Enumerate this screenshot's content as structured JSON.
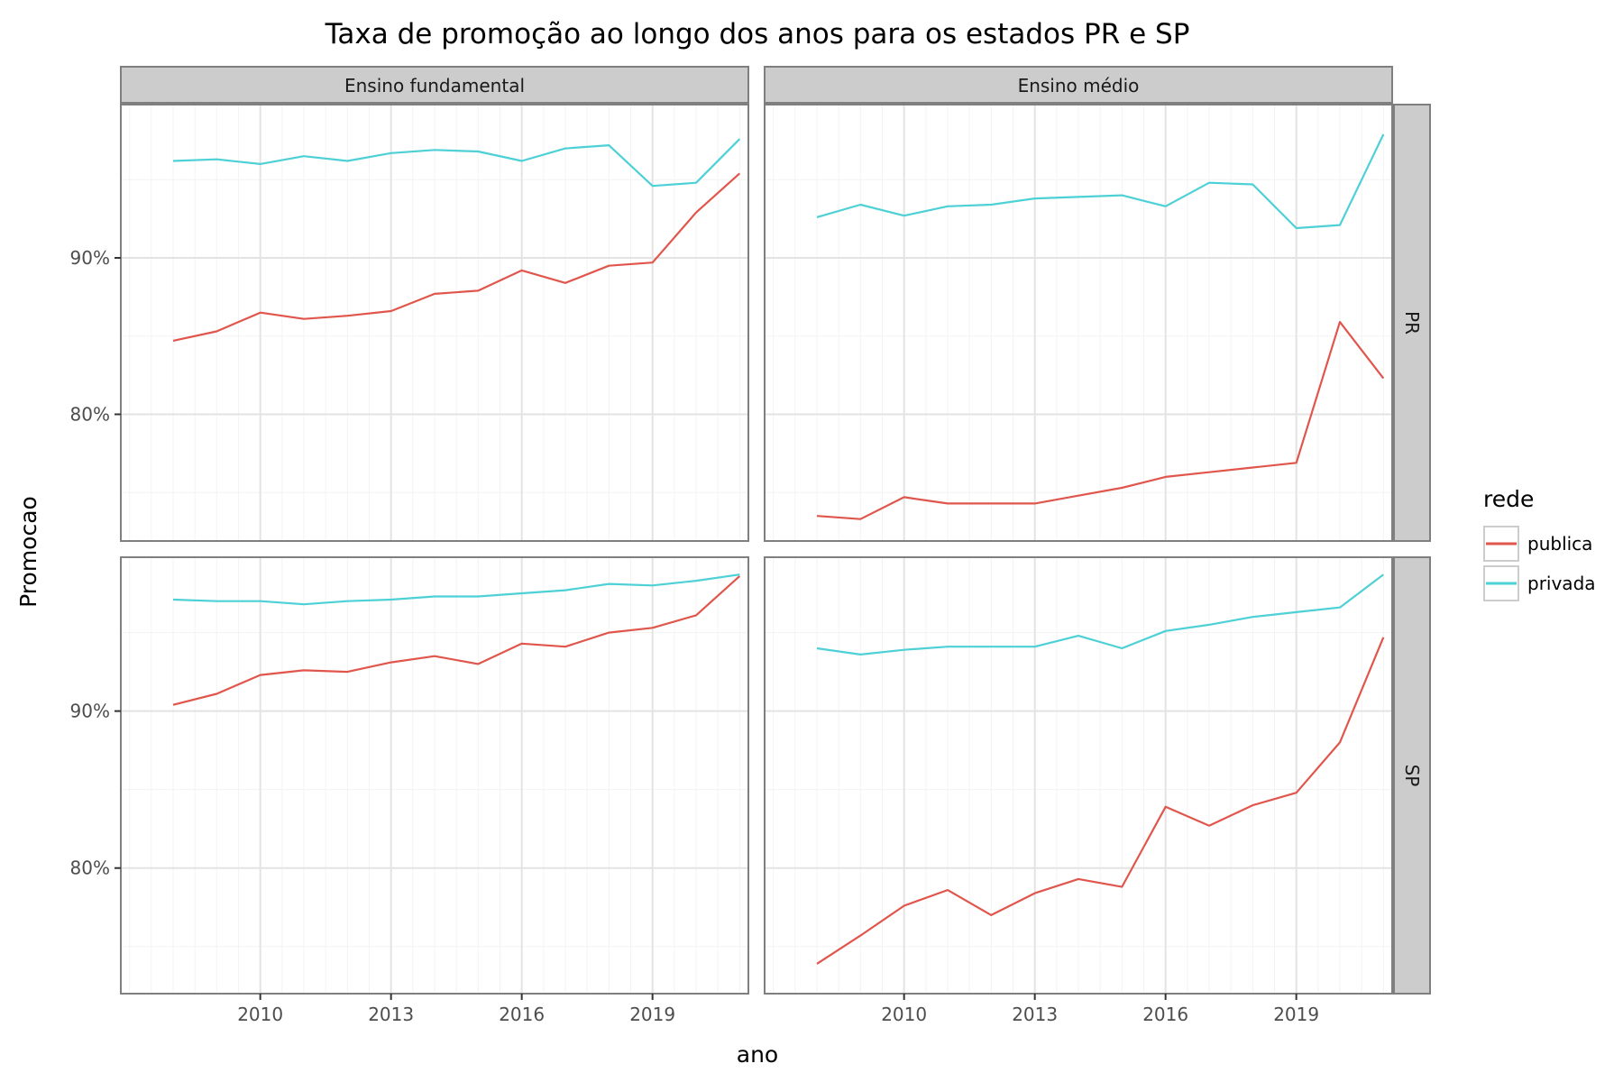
{
  "chart_data": {
    "type": "line",
    "title": "Taxa de promoção ao longo dos anos para os estados PR e SP",
    "xlabel": "ano",
    "ylabel": "Promocao",
    "x": [
      2008,
      2009,
      2010,
      2011,
      2012,
      2013,
      2014,
      2015,
      2016,
      2017,
      2018,
      2019,
      2020,
      2021
    ],
    "x_ticks": [
      2010,
      2013,
      2016,
      2019
    ],
    "x_tick_labels": [
      "2010",
      "2013",
      "2016",
      "2019"
    ],
    "xlim": [
      2006.8,
      2021.2
    ],
    "y_ticks": [
      80,
      90
    ],
    "y_tick_labels": [
      "80%",
      "90%"
    ],
    "grid": true,
    "legend": {
      "title": "rede",
      "position": "right",
      "entries": [
        {
          "label": "publica",
          "color": "#e1564c"
        },
        {
          "label": "privada",
          "color": "#4dd0d6"
        }
      ]
    },
    "col_facets": [
      "Ensino fundamental",
      "Ensino médio"
    ],
    "row_facets": [
      "PR",
      "SP"
    ],
    "panels": [
      {
        "row": "PR",
        "col": "Ensino fundamental",
        "ylim": [
          71.9,
          99.8
        ],
        "series": [
          {
            "name": "publica",
            "values": [
              84.7,
              85.3,
              86.5,
              86.1,
              86.3,
              86.6,
              87.7,
              87.9,
              89.2,
              88.4,
              89.5,
              89.7,
              92.9,
              95.4
            ]
          },
          {
            "name": "privada",
            "values": [
              96.2,
              96.3,
              96.0,
              96.5,
              96.2,
              96.7,
              96.9,
              96.8,
              96.2,
              97.0,
              97.2,
              94.6,
              94.8,
              97.6
            ]
          }
        ]
      },
      {
        "row": "PR",
        "col": "Ensino médio",
        "ylim": [
          71.9,
          99.8
        ],
        "series": [
          {
            "name": "publica",
            "values": [
              73.5,
              73.3,
              74.7,
              74.3,
              74.3,
              74.3,
              74.8,
              75.3,
              76.0,
              76.3,
              76.6,
              76.9,
              85.9,
              82.3
            ]
          },
          {
            "name": "privada",
            "values": [
              92.6,
              93.4,
              92.7,
              93.3,
              93.4,
              93.8,
              93.9,
              94.0,
              93.3,
              94.8,
              94.7,
              91.9,
              92.1,
              97.9
            ]
          }
        ]
      },
      {
        "row": "SP",
        "col": "Ensino fundamental",
        "ylim": [
          72.0,
          99.8
        ],
        "series": [
          {
            "name": "publica",
            "values": [
              90.4,
              91.1,
              92.3,
              92.6,
              92.5,
              93.1,
              93.5,
              93.0,
              94.3,
              94.1,
              95.0,
              95.3,
              96.1,
              98.6
            ]
          },
          {
            "name": "privada",
            "values": [
              97.1,
              97.0,
              97.0,
              96.8,
              97.0,
              97.1,
              97.3,
              97.3,
              97.5,
              97.7,
              98.1,
              98.0,
              98.3,
              98.7
            ]
          }
        ]
      },
      {
        "row": "SP",
        "col": "Ensino médio",
        "ylim": [
          72.0,
          99.8
        ],
        "series": [
          {
            "name": "publica",
            "values": [
              73.9,
              75.7,
              77.6,
              78.6,
              77.0,
              78.4,
              79.3,
              78.8,
              83.9,
              82.7,
              84.0,
              84.8,
              88.0,
              94.7
            ]
          },
          {
            "name": "privada",
            "values": [
              94.0,
              93.6,
              93.9,
              94.1,
              94.1,
              94.1,
              94.8,
              94.0,
              95.1,
              95.5,
              96.0,
              96.3,
              96.6,
              98.7
            ]
          }
        ]
      }
    ]
  }
}
